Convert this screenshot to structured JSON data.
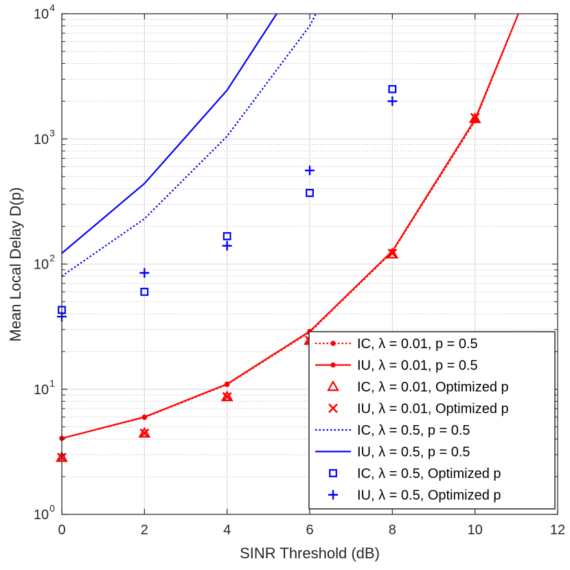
{
  "chart_data": {
    "type": "line",
    "title": "",
    "xlabel": "SINR Threshold (dB)",
    "ylabel": "Mean Local Delay D(p)",
    "xlim": [
      0,
      12
    ],
    "ylim": [
      1,
      10000
    ],
    "yscale": "log",
    "grid": true,
    "x_tick_labels": [
      "0",
      "2",
      "4",
      "6",
      "8",
      "10",
      "12"
    ],
    "y_tick_labels": [
      {
        "base": "10",
        "exp": "0"
      },
      {
        "base": "10",
        "exp": "1"
      },
      {
        "base": "10",
        "exp": "2"
      },
      {
        "base": "10",
        "exp": "3"
      },
      {
        "base": "10",
        "exp": "4"
      }
    ],
    "legend_position": "bottom-right",
    "series": [
      {
        "name": "IC, λ = 0.01, p = 0.5",
        "color": "#ff0000",
        "line": "dotted",
        "marker": "dot",
        "x": [
          0,
          2,
          4,
          6,
          8,
          10,
          11.05
        ],
        "y": [
          4.05,
          5.95,
          10.9,
          28.5,
          125,
          1390,
          10000
        ]
      },
      {
        "name": "IU, λ = 0.01, p = 0.5",
        "color": "#ff0000",
        "line": "solid",
        "marker": "dot",
        "x": [
          0,
          2,
          4,
          6,
          8,
          10,
          11.05
        ],
        "y": [
          4.05,
          6.0,
          11.0,
          29.0,
          127,
          1430,
          10000
        ]
      },
      {
        "name": "IC, λ = 0.01, Optimized p",
        "color": "#ff0000",
        "line": "none",
        "marker": "triangle",
        "x": [
          0,
          2,
          4,
          6,
          8,
          10
        ],
        "y": [
          2.85,
          4.45,
          8.7,
          24.5,
          120,
          1450
        ]
      },
      {
        "name": "IU, λ = 0.01, Optimized p",
        "color": "#ff0000",
        "line": "none",
        "marker": "x",
        "x": [
          0,
          2,
          4,
          6,
          8,
          10
        ],
        "y": [
          2.85,
          4.45,
          8.7,
          24.5,
          122,
          1480
        ]
      },
      {
        "name": "IC, λ = 0.5, p = 0.5",
        "color": "#0000ff",
        "line": "dotted",
        "marker": "none",
        "x": [
          0,
          2,
          4,
          6,
          6.15
        ],
        "y": [
          80,
          230,
          1050,
          8000,
          10000
        ]
      },
      {
        "name": "IU, λ = 0.5, p = 0.5",
        "color": "#0000ff",
        "line": "solid",
        "marker": "none",
        "x": [
          0,
          2,
          4,
          5.2
        ],
        "y": [
          122,
          440,
          2450,
          10000
        ]
      },
      {
        "name": "IC, λ = 0.5, Optimized p",
        "color": "#0000ff",
        "line": "none",
        "marker": "square",
        "x": [
          0,
          2,
          4,
          6,
          8
        ],
        "y": [
          43,
          60,
          167,
          370,
          2500
        ]
      },
      {
        "name": "IU, λ = 0.5, Optimized p",
        "color": "#0000ff",
        "line": "none",
        "marker": "plus",
        "x": [
          0,
          2,
          4,
          6,
          8
        ],
        "y": [
          38,
          85,
          140,
          560,
          2000
        ]
      }
    ]
  }
}
